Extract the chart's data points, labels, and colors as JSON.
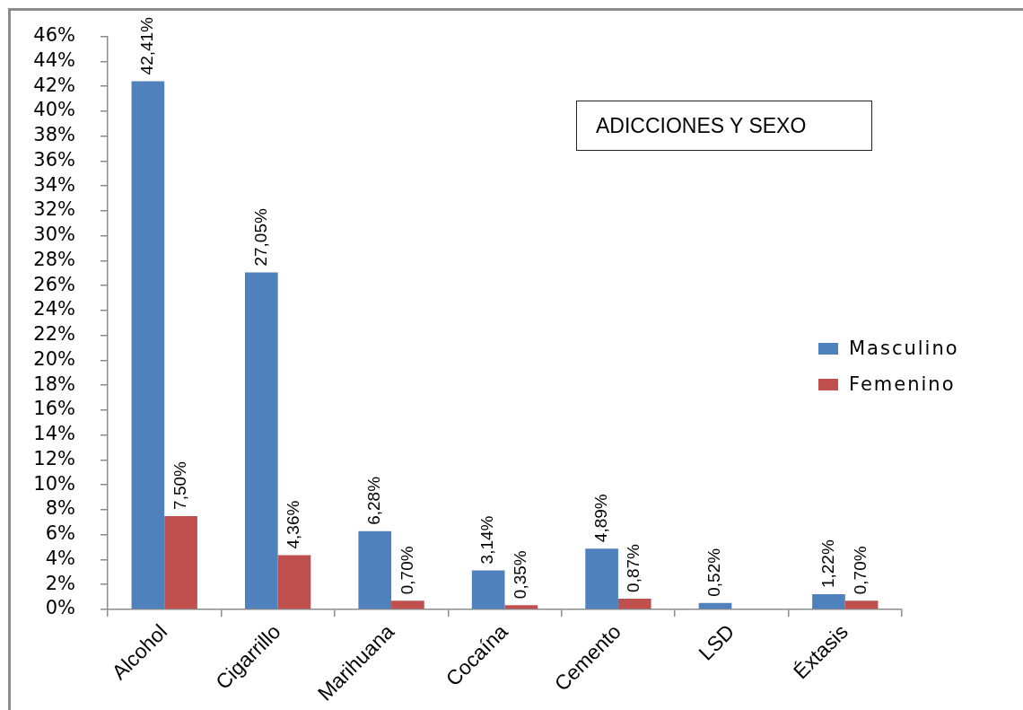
{
  "chart_data": {
    "type": "bar",
    "title": "ADICCIONES Y SEXO",
    "categories": [
      "Alcohol",
      "Cigarrillo",
      "Marihuana",
      "Cocaína",
      "Cemento",
      "LSD",
      "Éxtasis"
    ],
    "series": [
      {
        "name": "Masculino",
        "color": "#4f81bd",
        "values": [
          42.41,
          27.05,
          6.28,
          3.14,
          4.89,
          0.52,
          1.22
        ],
        "value_labels": [
          "42,41%",
          "27,05%",
          "6,28%",
          "3,14%",
          "4,89%",
          "0,52%",
          "1,22%"
        ]
      },
      {
        "name": "Femenino",
        "color": "#c0504d",
        "values": [
          7.5,
          4.36,
          0.7,
          0.35,
          0.87,
          null,
          0.7
        ],
        "value_labels": [
          "7,50%",
          "4,36%",
          "0,70%",
          "0,35%",
          "0,87%",
          null,
          "0,70%"
        ]
      }
    ],
    "ylim": [
      0,
      46
    ],
    "yticks": [
      {
        "value": 0,
        "label": "0%"
      },
      {
        "value": 2,
        "label": "2%"
      },
      {
        "value": 4,
        "label": "4%"
      },
      {
        "value": 6,
        "label": "6%"
      },
      {
        "value": 8,
        "label": "8%"
      },
      {
        "value": 10,
        "label": "10%"
      },
      {
        "value": 12,
        "label": "12%"
      },
      {
        "value": 14,
        "label": "14%"
      },
      {
        "value": 16,
        "label": "16%"
      },
      {
        "value": 18,
        "label": "18%"
      },
      {
        "value": 20,
        "label": "20%"
      },
      {
        "value": 22,
        "label": "22%"
      },
      {
        "value": 24,
        "label": "24%"
      },
      {
        "value": 26,
        "label": "26%"
      },
      {
        "value": 28,
        "label": "28%"
      },
      {
        "value": 30,
        "label": "30%"
      },
      {
        "value": 32,
        "label": "32%"
      },
      {
        "value": 34,
        "label": "34%"
      },
      {
        "value": 36,
        "label": "36%"
      },
      {
        "value": 38,
        "label": "38%"
      },
      {
        "value": 40,
        "label": "40%"
      },
      {
        "value": 42,
        "label": "42%"
      },
      {
        "value": 44,
        "label": "44%"
      },
      {
        "value": 46,
        "label": "46%"
      }
    ],
    "grid": false,
    "legend": "right"
  }
}
